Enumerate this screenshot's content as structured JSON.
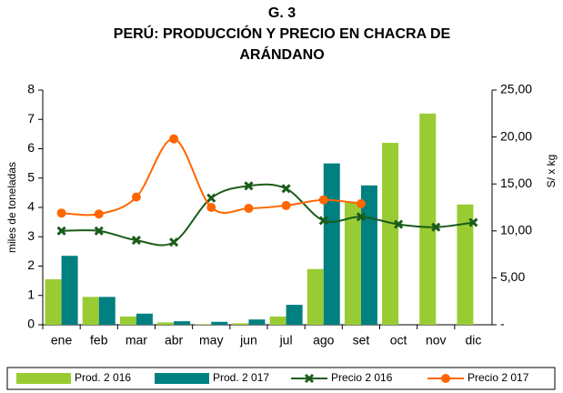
{
  "chart_data": {
    "type": "bar-line",
    "title": [
      "G. 3",
      "PERÚ: PRODUCCIÓN Y PRECIO EN CHACRA DE",
      "ARÁNDANO"
    ],
    "ylabel": "miles de toneladas",
    "y2label": "S/ x kg",
    "categories": [
      "ene",
      "feb",
      "mar",
      "abr",
      "may",
      "jun",
      "jul",
      "ago",
      "set",
      "oct",
      "nov",
      "dic"
    ],
    "series": [
      {
        "name": "Prod. 2 016",
        "type": "bar",
        "color": "#99cc33",
        "values": [
          1.55,
          0.95,
          0.28,
          0.08,
          0.02,
          0.05,
          0.28,
          1.9,
          4.2,
          6.2,
          7.2,
          4.1
        ]
      },
      {
        "name": "Prod. 2 017",
        "type": "bar",
        "color": "#008080",
        "values": [
          2.35,
          0.95,
          0.38,
          0.12,
          0.1,
          0.18,
          0.68,
          5.5,
          4.75,
          null,
          null,
          null
        ]
      },
      {
        "name": "Precio 2 016",
        "type": "line",
        "axis": "y2",
        "marker": "x",
        "color": "#1a5c1a",
        "values": [
          10.0,
          10.0,
          9.0,
          8.8,
          13.5,
          14.8,
          14.5,
          11.1,
          11.5,
          10.7,
          10.4,
          10.9
        ]
      },
      {
        "name": "Precio 2 017",
        "type": "line",
        "axis": "y2",
        "marker": "circle",
        "color": "#ff6600",
        "values": [
          11.9,
          11.8,
          13.6,
          19.8,
          12.5,
          12.4,
          12.7,
          13.3,
          12.9,
          null,
          null,
          null
        ]
      }
    ],
    "ylim": [
      0,
      8
    ],
    "yticks": [
      0,
      1,
      2,
      3,
      4,
      5,
      6,
      7,
      8
    ],
    "y2lim": [
      0,
      25
    ],
    "y2ticks": [
      {
        "value": 0,
        "label": "-"
      },
      {
        "value": 5,
        "label": "5,00"
      },
      {
        "value": 10,
        "label": "10,00"
      },
      {
        "value": 15,
        "label": "15,00"
      },
      {
        "value": 20,
        "label": "20,00"
      },
      {
        "value": 25,
        "label": "25,00"
      }
    ],
    "grid": false,
    "legend": "bottom"
  }
}
